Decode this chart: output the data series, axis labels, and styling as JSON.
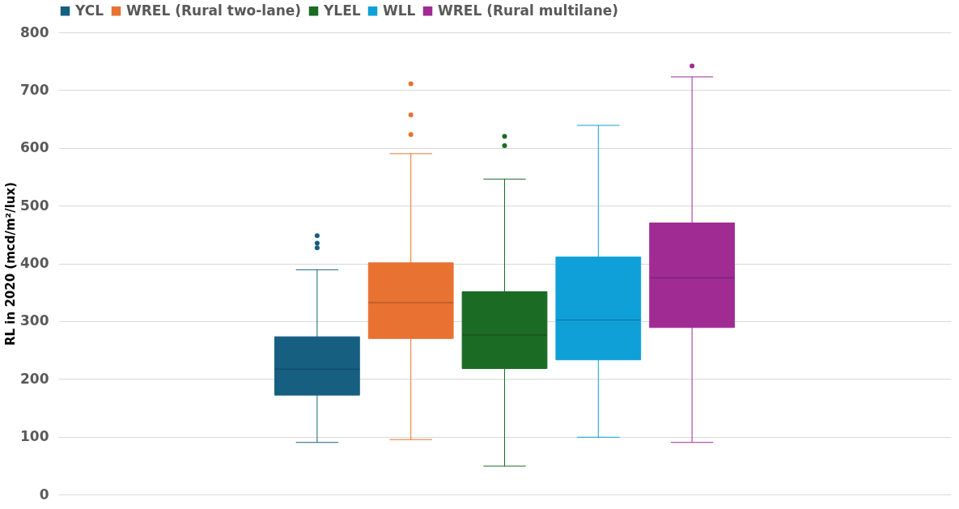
{
  "chart_data": {
    "type": "box",
    "ylabel": "RL in 2020 (mcd/m²/lux)",
    "categories": [
      null
    ],
    "series": [
      {
        "name": "YCL",
        "color": "#175f81",
        "boxes": [
          {
            "low": 90,
            "q1": 172,
            "median": 217,
            "q3": 273,
            "high": 389,
            "outliers": [
              427,
              435,
              448
            ]
          }
        ]
      },
      {
        "name": "WREL (Rural two-lane)",
        "color": "#e87232",
        "boxes": [
          {
            "low": 95,
            "q1": 270,
            "median": 332,
            "q3": 401,
            "high": 590,
            "outliers": [
              623,
              657,
              711
            ]
          }
        ]
      },
      {
        "name": "YLEL",
        "color": "#1b6b25",
        "boxes": [
          {
            "low": 49,
            "q1": 218,
            "median": 276,
            "q3": 351,
            "high": 546,
            "outliers": [
              604,
              620
            ]
          }
        ]
      },
      {
        "name": "WLL",
        "color": "#0fa0d8",
        "boxes": [
          {
            "low": 99,
            "q1": 233,
            "median": 302,
            "q3": 411,
            "high": 639
          }
        ]
      },
      {
        "name": "WREL (Rural multilane)",
        "color": "#a02b93",
        "boxes": [
          {
            "low": 90,
            "q1": 289,
            "median": 375,
            "q3": 470,
            "high": 723,
            "outliers": [
              742
            ]
          }
        ]
      }
    ],
    "ylim": [
      0,
      800
    ],
    "yticks": [
      0,
      100,
      200,
      300,
      400,
      500,
      600,
      700,
      800
    ],
    "grid": "y",
    "legend": "top",
    "tick_labels": "y"
  }
}
